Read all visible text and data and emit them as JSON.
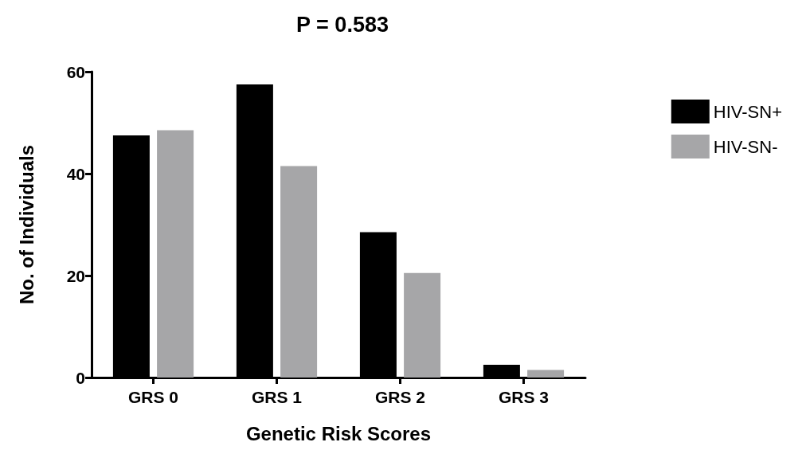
{
  "chart_data": {
    "type": "bar",
    "title": "P = 0.583",
    "xlabel": "Genetic Risk Scores",
    "ylabel": "No. of Individuals",
    "categories": [
      "GRS 0",
      "GRS 1",
      "GRS 2",
      "GRS 3"
    ],
    "series": [
      {
        "name": "HIV-SN+",
        "color": "#000000",
        "values": [
          47.5,
          57.5,
          28.5,
          2.5
        ]
      },
      {
        "name": "HIV-SN-",
        "color": "#a6a6a8",
        "values": [
          48.5,
          41.5,
          20.5,
          1.5
        ]
      }
    ],
    "ylim": [
      0,
      60
    ],
    "yticks": [
      0,
      20,
      40,
      60
    ],
    "grid": false,
    "legend": "top right"
  }
}
